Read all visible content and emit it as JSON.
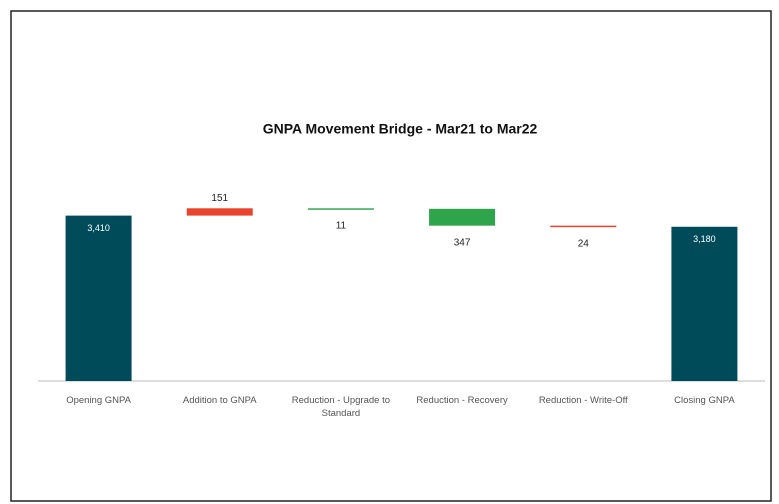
{
  "chart_data": {
    "type": "waterfall",
    "title": "GNPA Movement Bridge - Mar21 to Mar22",
    "categories": [
      "Opening GNPA",
      "Addition to GNPA",
      "Reduction - Upgrade to Standard",
      "Reduction - Recovery",
      "Reduction - Write-Off",
      "Closing GNPA"
    ],
    "values": [
      3410,
      151,
      -11,
      -347,
      -24,
      3180
    ],
    "value_labels": [
      "3,410",
      "151",
      "11",
      "347",
      "24",
      "3,180"
    ],
    "measure": [
      "total",
      "relative",
      "relative",
      "relative",
      "relative",
      "total"
    ],
    "colors": [
      "#004b5a",
      "#e8432e",
      "#34a853",
      "#2ea54b",
      "#e8432e",
      "#004b5a"
    ],
    "ylim": [
      0,
      4000
    ]
  }
}
